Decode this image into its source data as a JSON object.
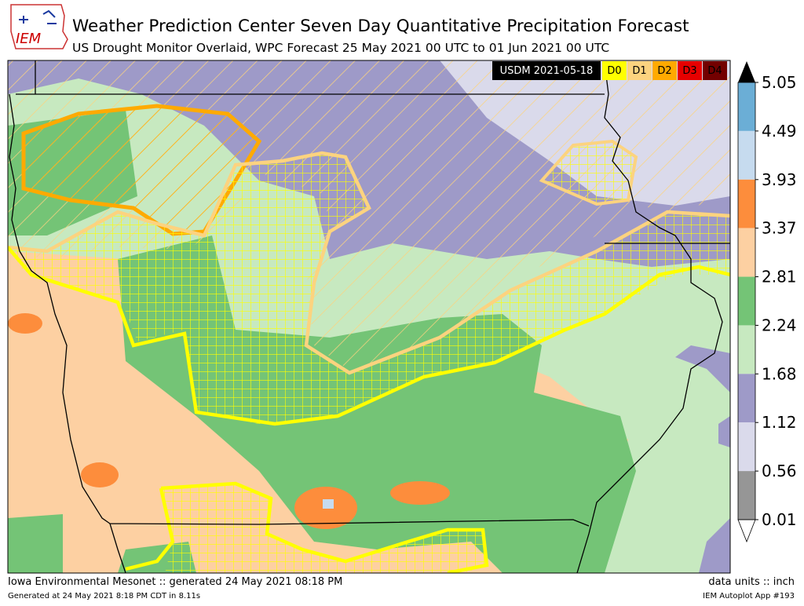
{
  "header": {
    "logo": "IEM",
    "title": "Weather Prediction Center Seven Day Quantitative Precipitation Forecast",
    "subtitle": "US Drought Monitor Overlaid, WPC Forecast 25 May 2021 00 UTC to 01 Jun 2021 00 UTC"
  },
  "legend": {
    "title": "USDM 2021-05-18",
    "categories": [
      {
        "label": "D0",
        "color": "#ffff00"
      },
      {
        "label": "D1",
        "color": "#fcd37f"
      },
      {
        "label": "D2",
        "color": "#ffaa00"
      },
      {
        "label": "D3",
        "color": "#e60000"
      },
      {
        "label": "D4",
        "color": "#730000"
      }
    ]
  },
  "colorbar": {
    "ticks": [
      5.05,
      4.49,
      3.93,
      3.37,
      2.81,
      2.24,
      1.68,
      1.12,
      0.56,
      0.01
    ],
    "colors": [
      "#6baed6",
      "#c6dbef",
      "#fd8d3c",
      "#fdd0a2",
      "#74c476",
      "#c7e9c0",
      "#9e9ac8",
      "#dadaeb",
      "#969696"
    ]
  },
  "footer": {
    "left": "Iowa Environmental Mesonet :: generated 24 May 2021 08:18 PM",
    "left_small": "Generated at 24 May 2021 8:18 PM CDT in 8.11s",
    "right": "data units :: inch",
    "right_small": "IEM Autoplot App #193"
  }
}
